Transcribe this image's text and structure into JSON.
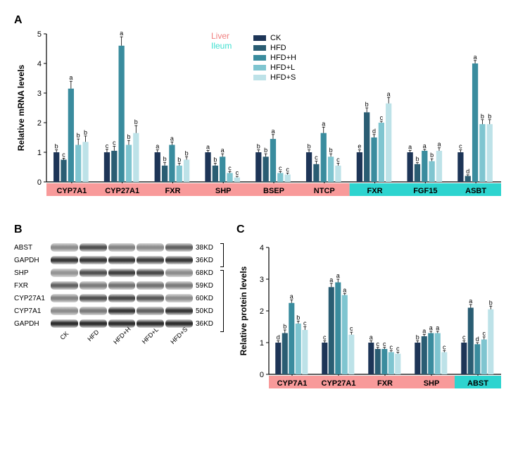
{
  "panelA": {
    "label": "A",
    "type": "grouped-bar",
    "ylabel": "Relative mRNA levels",
    "ylabel_fontsize": 12,
    "ylim": [
      0,
      5
    ],
    "yticks": [
      0,
      1,
      2,
      3,
      4,
      5
    ],
    "axis_fontsize": 11,
    "groups": [
      "CK",
      "HFD",
      "HFD+H",
      "HFD+L",
      "HFD+S"
    ],
    "group_colors": [
      "#1d3557",
      "#2a5d73",
      "#3a8c9e",
      "#7fc5d0",
      "#bde2e8"
    ],
    "categories": [
      "CYP7A1",
      "CYP27A1",
      "FXR",
      "SHP",
      "BSEP",
      "NTCP",
      "FXR",
      "FGF15",
      "ASBT"
    ],
    "category_fontsize": 11,
    "region_liver": {
      "label": "Liver",
      "color": "#f08080",
      "range": [
        0,
        6
      ]
    },
    "region_ileum": {
      "label": "Ileum",
      "color": "#40e0d0",
      "range": [
        6,
        9
      ]
    },
    "x_band_liver_color": "#f89a9a",
    "x_band_ileum_color": "#2dd4cf",
    "values": [
      [
        1.0,
        0.75,
        3.15,
        1.25,
        1.35
      ],
      [
        1.0,
        1.05,
        4.6,
        1.25,
        1.65
      ],
      [
        1.0,
        0.55,
        1.25,
        0.55,
        0.75
      ],
      [
        1.0,
        0.55,
        0.85,
        0.3,
        0.15
      ],
      [
        1.0,
        0.85,
        1.45,
        0.3,
        0.25
      ],
      [
        1.0,
        0.6,
        1.65,
        0.85,
        0.55
      ],
      [
        1.0,
        2.35,
        1.5,
        2.0,
        2.65
      ],
      [
        1.0,
        0.6,
        1.05,
        0.7,
        1.05
      ],
      [
        1.0,
        0.2,
        4.0,
        1.95,
        1.95
      ]
    ],
    "errors": [
      [
        0.08,
        0.05,
        0.25,
        0.2,
        0.2
      ],
      [
        0.1,
        0.15,
        0.3,
        0.15,
        0.25
      ],
      [
        0.08,
        0.1,
        0.1,
        0.08,
        0.1
      ],
      [
        0.06,
        0.08,
        0.1,
        0.05,
        0.04
      ],
      [
        0.08,
        0.1,
        0.15,
        0.05,
        0.05
      ],
      [
        0.08,
        0.1,
        0.2,
        0.1,
        0.08
      ],
      [
        0.08,
        0.15,
        0.1,
        0.05,
        0.2
      ],
      [
        0.06,
        0.05,
        0.05,
        0.08,
        0.1
      ],
      [
        0.08,
        0.04,
        0.1,
        0.15,
        0.15
      ]
    ],
    "sig": [
      [
        "b",
        "c",
        "a",
        "b",
        "b"
      ],
      [
        "c",
        "c",
        "a",
        "b",
        "b"
      ],
      [
        "a",
        "b",
        "a",
        "b",
        "b"
      ],
      [
        "a",
        "b",
        "a",
        "c",
        "c"
      ],
      [
        "b",
        "b",
        "a",
        "c",
        "c"
      ],
      [
        "b",
        "c",
        "a",
        "b",
        "c"
      ],
      [
        "e",
        "b",
        "d",
        "c",
        "a"
      ],
      [
        "a",
        "b",
        "a",
        "b",
        "a"
      ],
      [
        "c",
        "d",
        "a",
        "b",
        "b"
      ]
    ],
    "sig_fontsize": 9,
    "region_label_fontsize": 12,
    "legend_fontsize": 11,
    "bar_width": 0.8
  },
  "panelB": {
    "label": "B",
    "proteins": [
      "ABST",
      "GAPDH",
      "SHP",
      "FXR",
      "CYP27A1",
      "CYP7A1",
      "GAPDH"
    ],
    "kd": [
      "38KD",
      "36KD",
      "68KD",
      "59KD",
      "60KD",
      "50KD",
      "36KD"
    ],
    "lanes": [
      "CK",
      "HFD",
      "HFD+H",
      "HFD+L",
      "HFD+S"
    ],
    "bracket_split": 2,
    "intensity": [
      [
        0.35,
        0.7,
        0.4,
        0.35,
        0.6
      ],
      [
        0.85,
        0.85,
        0.85,
        0.8,
        0.85
      ],
      [
        0.3,
        0.7,
        0.8,
        0.75,
        0.35
      ],
      [
        0.6,
        0.45,
        0.5,
        0.5,
        0.45
      ],
      [
        0.4,
        0.7,
        0.75,
        0.65,
        0.35
      ],
      [
        0.35,
        0.45,
        0.85,
        0.6,
        0.85
      ],
      [
        0.9,
        0.9,
        0.9,
        0.9,
        0.9
      ]
    ],
    "band_color_dark": "#2a2a2a",
    "band_color_light": "#b0b0b0",
    "label_fontsize": 10
  },
  "panelC": {
    "label": "C",
    "type": "grouped-bar",
    "ylabel": "Relative protein levels",
    "ylabel_fontsize": 12,
    "ylim": [
      0,
      4
    ],
    "yticks": [
      0,
      1,
      2,
      3,
      4
    ],
    "axis_fontsize": 11,
    "groups": [
      "CK",
      "HFD",
      "HFD+H",
      "HFD+L",
      "HFD+S"
    ],
    "group_colors": [
      "#1d3557",
      "#2a5d73",
      "#3a8c9e",
      "#7fc5d0",
      "#bde2e8"
    ],
    "categories": [
      "CYP7A1",
      "CYP27A1",
      "FXR",
      "SHP",
      "ABST"
    ],
    "category_fontsize": 11,
    "region_liver": {
      "color": "#f89a9a",
      "range": [
        0,
        4
      ]
    },
    "region_ileum": {
      "color": "#2dd4cf",
      "range": [
        4,
        5
      ]
    },
    "values": [
      [
        1.0,
        1.3,
        2.25,
        1.6,
        1.4
      ],
      [
        1.0,
        2.75,
        2.9,
        2.5,
        1.25
      ],
      [
        1.0,
        0.8,
        0.8,
        0.7,
        0.65
      ],
      [
        1.0,
        1.2,
        1.3,
        1.3,
        0.7
      ],
      [
        1.0,
        2.1,
        0.95,
        1.1,
        2.05
      ]
    ],
    "errors": [
      [
        0.06,
        0.1,
        0.1,
        0.08,
        0.1
      ],
      [
        0.06,
        0.12,
        0.1,
        0.05,
        0.08
      ],
      [
        0.06,
        0.05,
        0.05,
        0.05,
        0.05
      ],
      [
        0.06,
        0.06,
        0.06,
        0.06,
        0.05
      ],
      [
        0.06,
        0.1,
        0.05,
        0.08,
        0.1
      ]
    ],
    "sig": [
      [
        "d",
        "b",
        "a",
        "b",
        "c"
      ],
      [
        "c",
        "a",
        "a",
        "a",
        "c"
      ],
      [
        "a",
        "c",
        "c",
        "c",
        "c"
      ],
      [
        "b",
        "a",
        "a",
        "a",
        "c"
      ],
      [
        "c",
        "a",
        "d",
        "c",
        "b"
      ]
    ],
    "sig_fontsize": 9
  }
}
